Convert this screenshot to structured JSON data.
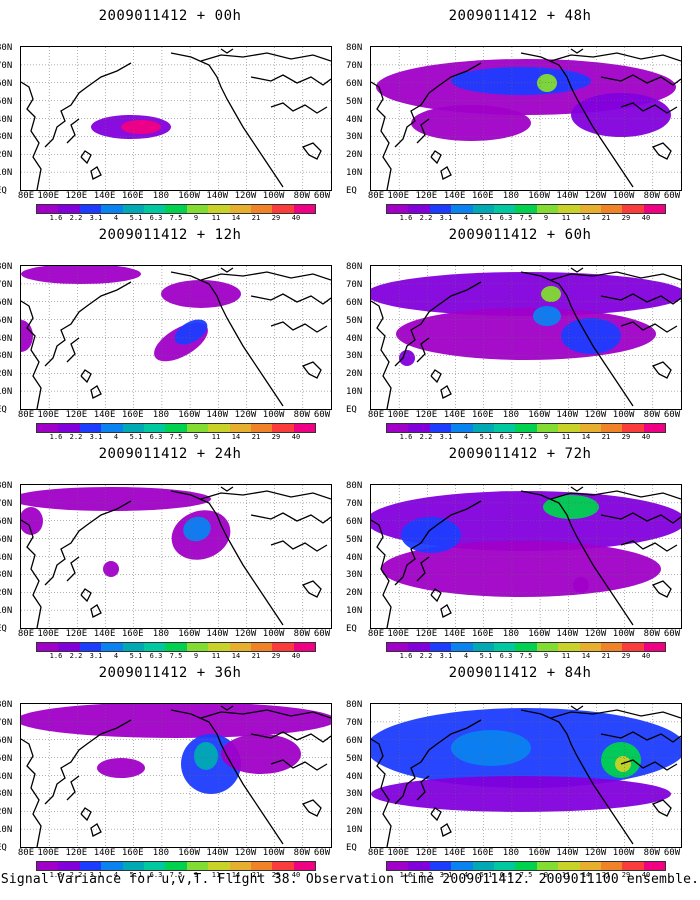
{
  "footer": "Signal Variance for u,v,T. Flight 38. Observation time 2009011412. 2009011100 ensemble.",
  "colorbar": {
    "labels": [
      "1.6",
      "2.2",
      "3.1",
      "4",
      "5.1",
      "6.3",
      "7.5",
      "9",
      "11",
      "14",
      "21",
      "29",
      "40"
    ],
    "colors": [
      "#a000c8",
      "#8200dc",
      "#1e3cff",
      "#0a82f0",
      "#00aab4",
      "#00c8a0",
      "#00d250",
      "#82dc32",
      "#c8d228",
      "#e6af2d",
      "#f08228",
      "#fa3c3c",
      "#f00082"
    ]
  },
  "lat_labels": [
    "80N",
    "70N",
    "60N",
    "50N",
    "40N",
    "30N",
    "20N",
    "10N",
    "EQ"
  ],
  "lon_labels": [
    "80E",
    "100E",
    "120E",
    "140E",
    "160E",
    "180",
    "160W",
    "140W",
    "120W",
    "100W",
    "80W",
    "60W"
  ],
  "panels": [
    {
      "title": "2009011412 + 00h"
    },
    {
      "title": "2009011412 + 48h"
    },
    {
      "title": "2009011412 + 12h"
    },
    {
      "title": "2009011412 + 60h"
    },
    {
      "title": "2009011412 + 24h"
    },
    {
      "title": "2009011412 + 72h"
    },
    {
      "title": "2009011412 + 36h"
    },
    {
      "title": "2009011412 + 84h"
    }
  ]
}
